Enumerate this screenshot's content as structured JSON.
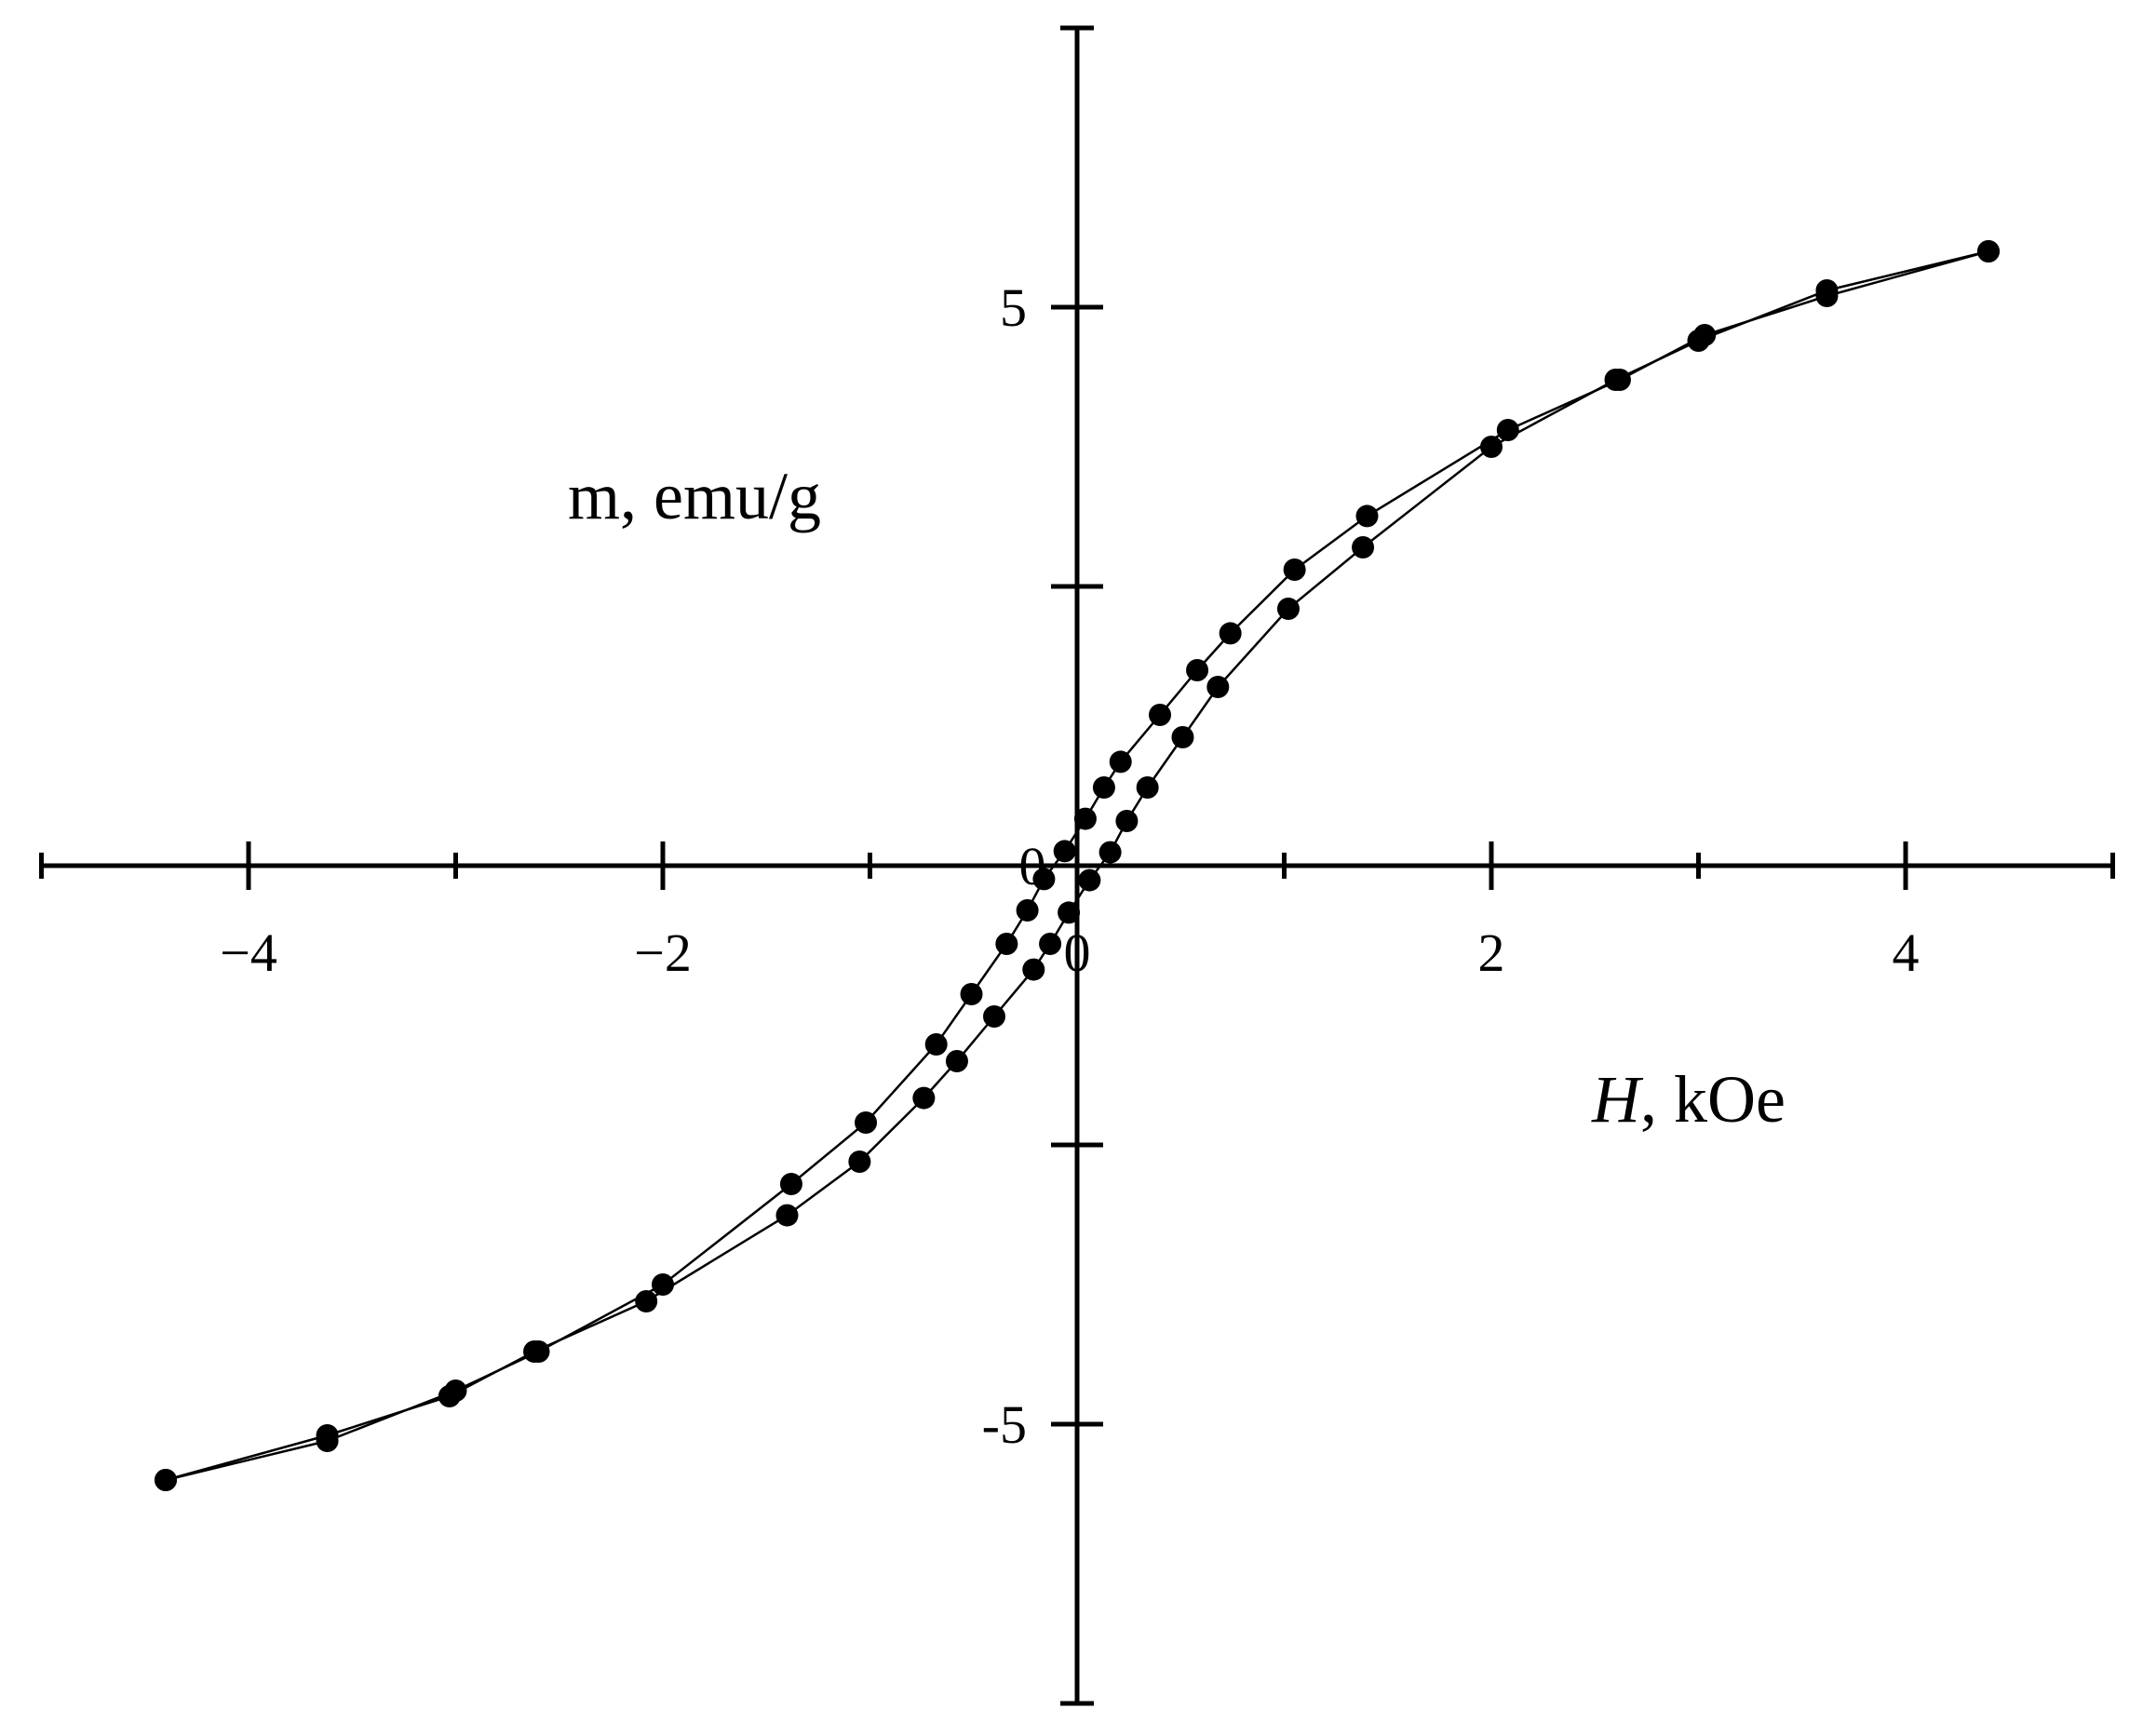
{
  "chart_data": {
    "type": "scatter",
    "title": "",
    "xlabel": "H, kOe",
    "xlabel_italic_part": "H",
    "xlabel_rest": ", kOe",
    "ylabel": "m, emu/g",
    "xlim": [
      -5,
      5
    ],
    "ylim": [
      -7.5,
      7.5
    ],
    "x_major_ticks": [
      -4,
      -2,
      0,
      2,
      4
    ],
    "x_minor_ticks": [
      -5,
      -3,
      -1,
      1,
      3,
      5
    ],
    "x_tick_labels": [
      "−4",
      "−2",
      "0",
      "2",
      "4"
    ],
    "y_ticks": [
      -7.5,
      -5,
      -2.5,
      2.5,
      5,
      7.5
    ],
    "y_tick_labels": [
      {
        "value": 5,
        "label": "5"
      },
      {
        "value": -5,
        "label": "-5"
      }
    ],
    "origin_label": "0",
    "grid": false,
    "legend": "none",
    "marker_color": "#000000",
    "line_color": "#000000",
    "series": [
      {
        "x": [
          4.4,
          3.62,
          3.03,
          2.62,
          2.08,
          1.4,
          1.05,
          0.74,
          0.58,
          0.4,
          0.21,
          0.13,
          0.04,
          -0.06,
          -0.16,
          -0.24,
          -0.34,
          -0.51,
          -0.68,
          -1.02,
          -1.38,
          -2.0,
          -2.6,
          -3.0,
          -3.62,
          -4.4
        ],
        "y": [
          5.5,
          5.1,
          4.75,
          4.35,
          3.9,
          3.13,
          2.65,
          2.08,
          1.75,
          1.35,
          0.93,
          0.7,
          0.42,
          0.13,
          -0.12,
          -0.4,
          -0.7,
          -1.15,
          -1.6,
          -2.3,
          -2.85,
          -3.75,
          -4.35,
          -4.7,
          -5.15,
          -5.5
        ]
      },
      {
        "x": [
          -4.4,
          -3.62,
          -3.03,
          -2.62,
          -2.08,
          -1.4,
          -1.05,
          -0.74,
          -0.58,
          -0.4,
          -0.21,
          -0.13,
          -0.04,
          0.06,
          0.16,
          0.24,
          0.34,
          0.51,
          0.68,
          1.02,
          1.38,
          2.0,
          2.6,
          3.0,
          3.62,
          4.4
        ],
        "y": [
          -5.5,
          -5.1,
          -4.75,
          -4.35,
          -3.9,
          -3.13,
          -2.65,
          -2.08,
          -1.75,
          -1.35,
          -0.93,
          -0.7,
          -0.42,
          -0.13,
          0.12,
          0.4,
          0.7,
          1.15,
          1.6,
          2.3,
          2.85,
          3.75,
          4.35,
          4.7,
          5.15,
          5.5
        ]
      }
    ]
  }
}
